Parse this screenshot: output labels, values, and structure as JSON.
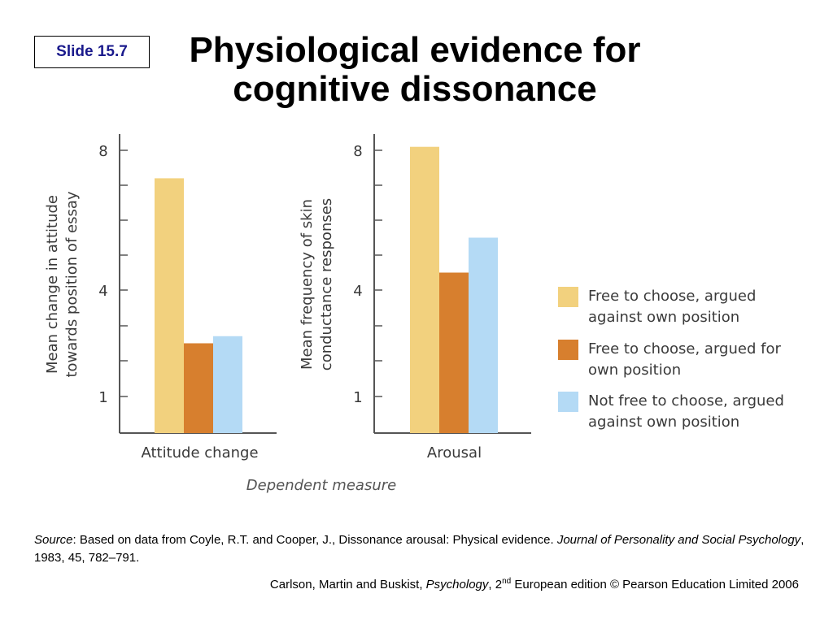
{
  "slide": {
    "badge": "Slide 15.7",
    "title_line1": "Physiological evidence for",
    "title_line2": "cognitive dissonance"
  },
  "chart_data": {
    "type": "bar",
    "xlabel": "Dependent measure",
    "legend_placement": "right",
    "series": [
      {
        "name": "Free to choose, argued against own position",
        "name_lines": [
          "Free to choose, argued",
          "against own position"
        ],
        "color": "#f2d17e"
      },
      {
        "name": "Free to choose, argued for own position",
        "name_lines": [
          "Free to choose, argued for",
          "own position"
        ],
        "color": "#d77f2e"
      },
      {
        "name": "Not free to choose, argued against own position",
        "name_lines": [
          "Not free to choose, argued",
          "against own position"
        ],
        "color": "#b4daf5"
      }
    ],
    "panels": [
      {
        "category": "Attitude change",
        "ylabel_lines": [
          "Mean change in attitude",
          "towards position of essay"
        ],
        "ticks": [
          "8",
          "4",
          "1"
        ],
        "values": [
          7.2,
          2.5,
          2.7
        ]
      },
      {
        "category": "Arousal",
        "ylabel_lines": [
          "Mean frequency of skin",
          "conductance responses"
        ],
        "ticks": [
          "8",
          "4",
          "1"
        ],
        "values": [
          8.1,
          4.5,
          5.5
        ]
      }
    ]
  },
  "footer": {
    "source_label": "Source",
    "source_text": ": Based on data from Coyle, R.T. and Cooper, J., Dissonance arousal: Physical evidence. ",
    "journal": "Journal of Personality and Social Psychology",
    "citation": ", 1983, 45, 782–791.",
    "credit_authors": "Carlson, Martin and Buskist, ",
    "credit_book": "Psychology",
    "credit_edition_num": ", 2",
    "credit_edition_sup": "nd",
    "credit_rest": " European edition © Pearson Education Limited 2006"
  }
}
